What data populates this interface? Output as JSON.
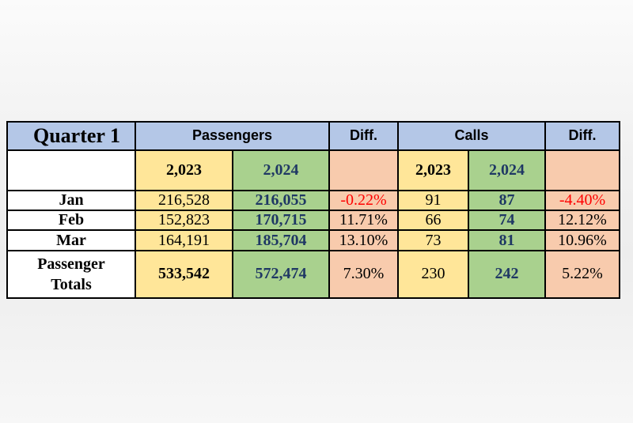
{
  "table": {
    "title": "Quarter 1",
    "group_headers": {
      "passengers": "Passengers",
      "passengers_diff": "Diff.",
      "calls": "Calls",
      "calls_diff": "Diff."
    },
    "years": {
      "passengers_prev": "2,023",
      "passengers_curr": "2,024",
      "calls_prev": "2,023",
      "calls_curr": "2,024"
    },
    "rows": [
      {
        "label": "Jan",
        "p_prev": "216,528",
        "p_curr": "216,055",
        "p_diff": "-0.22%",
        "c_prev": "91",
        "c_curr": "87",
        "c_diff": "-4.40%"
      },
      {
        "label": "Feb",
        "p_prev": "152,823",
        "p_curr": "170,715",
        "p_diff": "11.71%",
        "c_prev": "66",
        "c_curr": "74",
        "c_diff": "12.12%"
      },
      {
        "label": "Mar",
        "p_prev": "164,191",
        "p_curr": "185,704",
        "p_diff": "13.10%",
        "c_prev": "73",
        "c_curr": "81",
        "c_diff": "10.96%"
      }
    ],
    "totals": {
      "label_line1": "Passenger",
      "label_line2": "Totals",
      "p_prev": "533,542",
      "p_curr": "572,474",
      "p_diff": "7.30%",
      "c_prev": "230",
      "c_curr": "242",
      "c_diff": "5.22%"
    }
  },
  "colors": {
    "header_blue": "#b4c7e7",
    "prev_year_yellow": "#ffe699",
    "curr_year_green": "#a9d18e",
    "diff_peach": "#f8cbad",
    "current_value_navy": "#1f3864",
    "negative_red": "#ff0000"
  },
  "chart_data": {
    "type": "table",
    "title": "Quarter 1",
    "columns": [
      "",
      "Passengers 2,023",
      "Passengers 2,024",
      "Diff.",
      "Calls 2,023",
      "Calls 2,024",
      "Diff."
    ],
    "rows": [
      [
        "Jan",
        216528,
        216055,
        -0.22,
        91,
        87,
        -4.4
      ],
      [
        "Feb",
        152823,
        170715,
        11.71,
        66,
        74,
        12.12
      ],
      [
        "Mar",
        164191,
        185704,
        13.1,
        73,
        81,
        10.96
      ],
      [
        "Passenger Totals",
        533542,
        572474,
        7.3,
        230,
        242,
        5.22
      ]
    ]
  }
}
